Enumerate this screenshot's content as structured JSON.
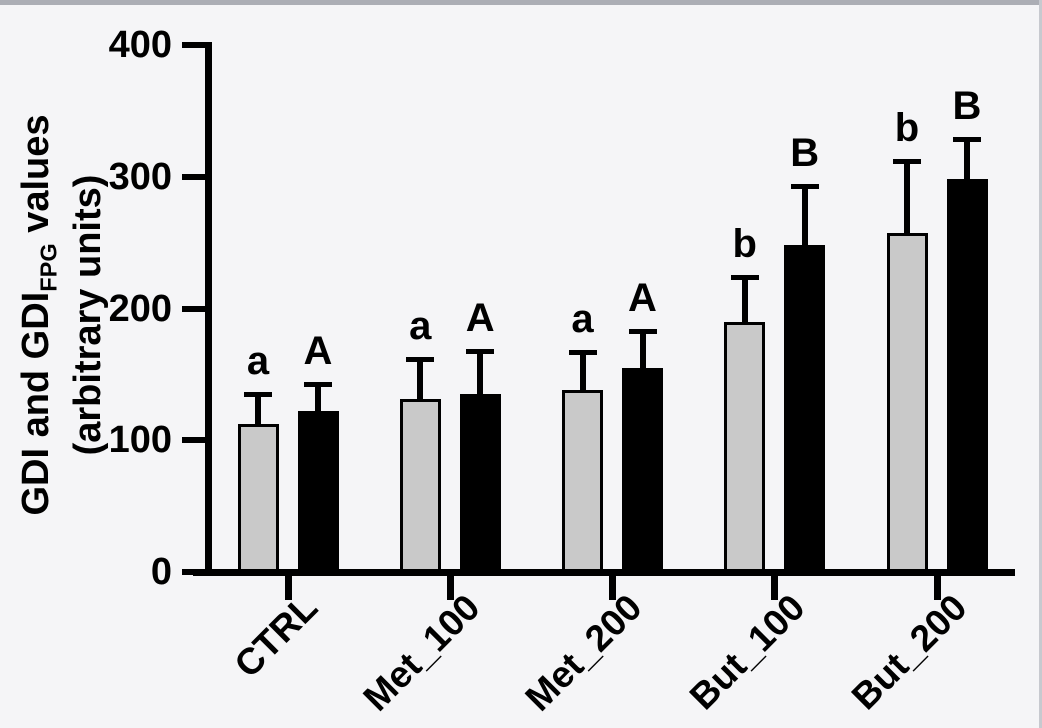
{
  "figure": {
    "background": "#f5f5f7",
    "window_edge_color": "#9fa1a9"
  },
  "chart_data": {
    "type": "bar",
    "title": "",
    "categories": [
      "CTRL",
      "Met_100",
      "Met_200",
      "But_100",
      "But_200"
    ],
    "series": [
      {
        "name": "GDI",
        "color": "#c9c9c9",
        "values": [
          112,
          131,
          138,
          190,
          257
        ],
        "errors": [
          23,
          31,
          29,
          34,
          55
        ],
        "significance_letters": [
          "a",
          "a",
          "a",
          "b",
          "b"
        ]
      },
      {
        "name": "GDI_FPG",
        "color": "#000000",
        "values": [
          122,
          135,
          155,
          248,
          298
        ],
        "errors": [
          21,
          33,
          28,
          45,
          31
        ],
        "significance_letters": [
          "A",
          "A",
          "A",
          "B",
          "B"
        ]
      }
    ],
    "ylabel": {
      "line1_pre": "GDI and GDI",
      "subscript": "FPG",
      "line1_post": " values",
      "line2": "(arbitrary units)"
    },
    "xlabel": "",
    "ylim": [
      0,
      400
    ],
    "yticks": [
      0,
      100,
      200,
      300,
      400
    ],
    "grid": false,
    "legend": "none",
    "error_bar_style": "upper-only",
    "bar_edge_color": "#000000",
    "axis_color": "#000000",
    "text_color": "#000000"
  }
}
